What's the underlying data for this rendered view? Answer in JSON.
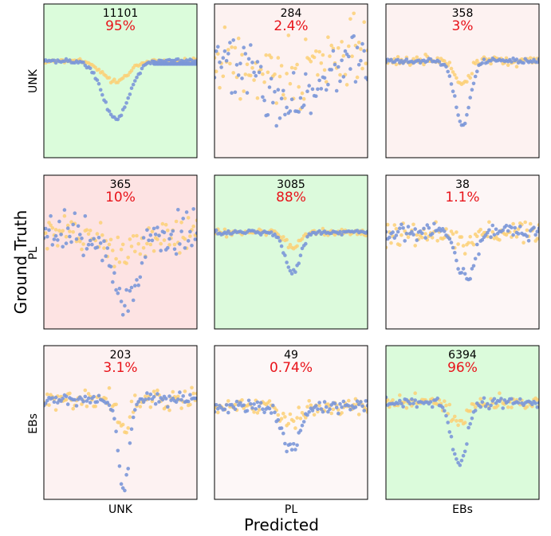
{
  "figure": {
    "xlabel": "Predicted",
    "ylabel": "Ground Truth",
    "col_labels": [
      "UNK",
      "PL",
      "EBs"
    ],
    "row_labels": [
      "UNK",
      "PL",
      "EBs"
    ]
  },
  "colors": {
    "blue_points": "#7b97d8",
    "yellow_points": "#fcd076",
    "pct_text": "#e8141b",
    "count_text": "#000000"
  },
  "chart_data": {
    "type": "confusion-matrix-of-scatter-thumbnails",
    "note_shape": "every cell shows a phase-folded light-curve scatter (blue and yellow points), a count and a percentage; background tint encodes percentage",
    "rows": [
      "UNK",
      "PL",
      "EBs"
    ],
    "columns": [
      "UNK",
      "PL",
      "EBs"
    ],
    "cells": [
      [
        {
          "count": "11101",
          "percent": "95%",
          "value": 95,
          "tint": "#dbfcdb",
          "shape": "dip_left"
        },
        {
          "count": "284",
          "percent": "2.4%",
          "value": 2.4,
          "tint": "#fdf2f1",
          "shape": "scatter_wide"
        },
        {
          "count": "358",
          "percent": "3%",
          "value": 3,
          "tint": "#fdf2f1",
          "shape": "dip_center"
        }
      ],
      [
        {
          "count": "365",
          "percent": "10%",
          "value": 10,
          "tint": "#fde3e3",
          "shape": "noisy_dip"
        },
        {
          "count": "3085",
          "percent": "88%",
          "value": 88,
          "tint": "#dcfadc",
          "shape": "dip_center_shallow"
        },
        {
          "count": "38",
          "percent": "1.1%",
          "value": 1.1,
          "tint": "#fdf6f6",
          "shape": "dip_center_noisy"
        }
      ],
      [
        {
          "count": "203",
          "percent": "3.1%",
          "value": 3.1,
          "tint": "#fdf2f2",
          "shape": "dip_deep"
        },
        {
          "count": "49",
          "percent": "0.74%",
          "value": 0.74,
          "tint": "#fdf7f7",
          "shape": "dip_center_small"
        },
        {
          "count": "6394",
          "percent": "96%",
          "value": 96,
          "tint": "#dbfbdb",
          "shape": "dip_center_mid"
        }
      ]
    ]
  }
}
